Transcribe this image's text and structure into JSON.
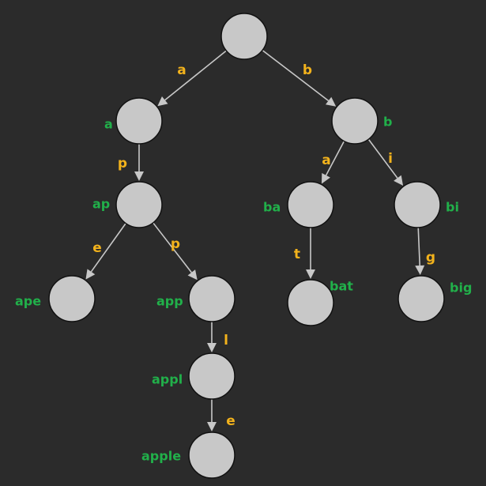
{
  "colors": {
    "background": "#2b2b2b",
    "node_fill": "#c8c8c8",
    "edge": "#c8c8c8",
    "edge_label": "#f2b21c",
    "node_label": "#21b04a"
  },
  "nodes": [
    {
      "id": "root",
      "label": ""
    },
    {
      "id": "a",
      "label": "a"
    },
    {
      "id": "ap",
      "label": "ap"
    },
    {
      "id": "ape",
      "label": "ape"
    },
    {
      "id": "app",
      "label": "app"
    },
    {
      "id": "appl",
      "label": "appl"
    },
    {
      "id": "apple",
      "label": "apple"
    },
    {
      "id": "b",
      "label": "b"
    },
    {
      "id": "ba",
      "label": "ba"
    },
    {
      "id": "bat",
      "label": "bat"
    },
    {
      "id": "bi",
      "label": "bi"
    },
    {
      "id": "big",
      "label": "big"
    }
  ],
  "edges": [
    {
      "from": "root",
      "to": "a",
      "label": "a"
    },
    {
      "from": "root",
      "to": "b",
      "label": "b"
    },
    {
      "from": "a",
      "to": "ap",
      "label": "p"
    },
    {
      "from": "ap",
      "to": "ape",
      "label": "e"
    },
    {
      "from": "ap",
      "to": "app",
      "label": "p"
    },
    {
      "from": "app",
      "to": "appl",
      "label": "l"
    },
    {
      "from": "appl",
      "to": "apple",
      "label": "e"
    },
    {
      "from": "b",
      "to": "ba",
      "label": "a"
    },
    {
      "from": "b",
      "to": "bi",
      "label": "i"
    },
    {
      "from": "ba",
      "to": "bat",
      "label": "t"
    },
    {
      "from": "bi",
      "to": "big",
      "label": "g"
    }
  ]
}
